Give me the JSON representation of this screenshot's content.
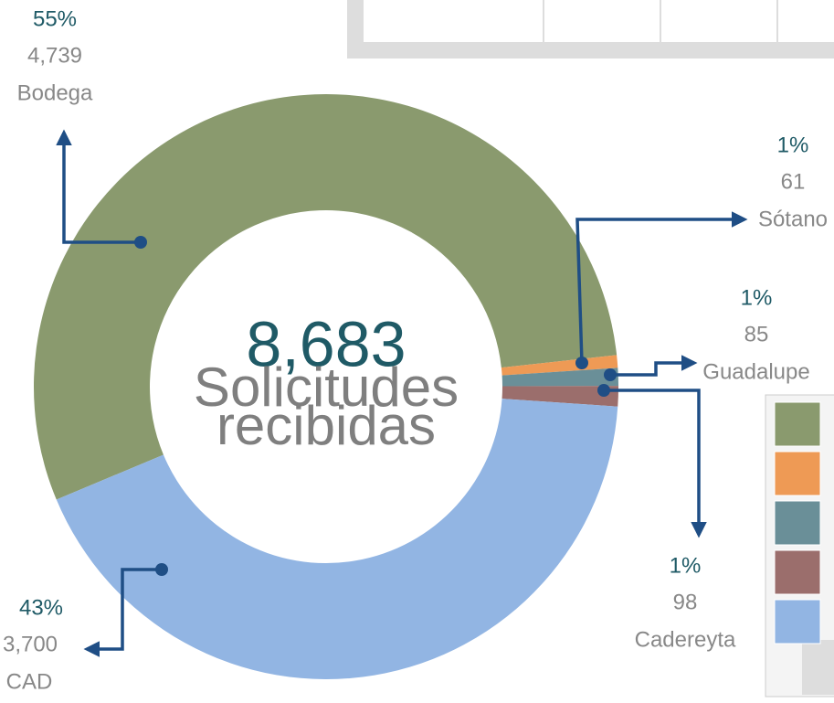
{
  "chart_data": {
    "type": "donut",
    "center_value": {
      "value": 8683,
      "label": "8,683"
    },
    "center_text": [
      "Solicitudes",
      "recibidas"
    ],
    "categories": [
      "Bodega",
      "Sótano",
      "Guadalupe",
      "Cadereyta",
      "CAD"
    ],
    "values": [
      4739,
      61,
      85,
      98,
      3700
    ],
    "value_labels": [
      "4,739",
      "61",
      "85",
      "98",
      "3,700"
    ],
    "percent_labels": [
      "55%",
      "1%",
      "1%",
      "1%",
      "43%"
    ],
    "colors": [
      "#8a9a6e",
      "#ee9a55",
      "#6a8f98",
      "#9b6e6c",
      "#92b5e3"
    ]
  }
}
